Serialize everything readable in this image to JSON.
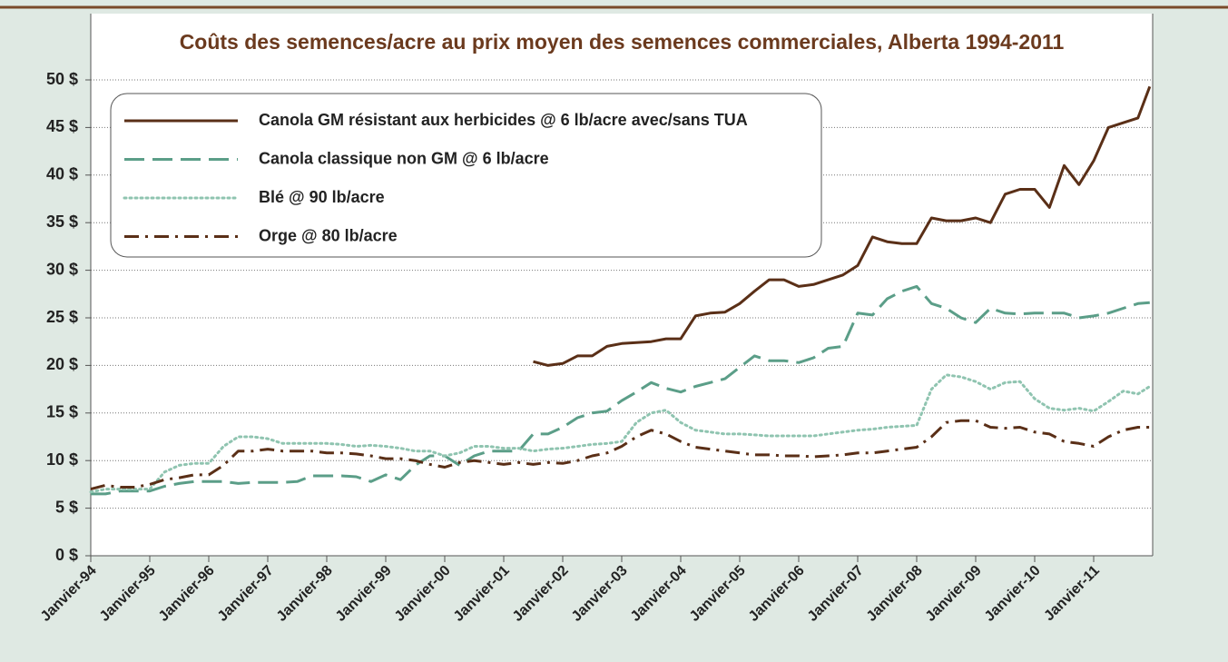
{
  "chart_data": {
    "type": "line",
    "title": "Coûts des semences/acre au prix moyen des semences commerciales, Alberta 1994-2011",
    "x": [
      1994,
      1994.25,
      1994.5,
      1994.75,
      1995,
      1995.25,
      1995.5,
      1995.75,
      1996,
      1996.25,
      1996.5,
      1996.75,
      1997,
      1997.25,
      1997.5,
      1997.75,
      1998,
      1998.25,
      1998.5,
      1998.75,
      1999,
      1999.25,
      1999.5,
      1999.75,
      2000,
      2000.25,
      2000.5,
      2000.75,
      2001,
      2001.25,
      2001.5,
      2001.75,
      2002,
      2002.25,
      2002.5,
      2002.75,
      2003,
      2003.25,
      2003.5,
      2003.75,
      2004,
      2004.25,
      2004.5,
      2004.75,
      2005,
      2005.25,
      2005.5,
      2005.75,
      2006,
      2006.25,
      2006.5,
      2006.75,
      2007,
      2007.25,
      2007.5,
      2007.75,
      2008,
      2008.25,
      2008.5,
      2008.75,
      2009,
      2009.25,
      2009.5,
      2009.75,
      2010,
      2010.25,
      2010.5,
      2010.75,
      2011,
      2011.25,
      2011.5,
      2011.75,
      2011.95
    ],
    "series": [
      {
        "name": "Canola GM résistant aux herbicides @ 6 lb/acre avec/sans TUA",
        "color": "#5a2f17",
        "dash": "solid",
        "values": [
          null,
          null,
          null,
          null,
          null,
          null,
          null,
          null,
          null,
          null,
          null,
          null,
          null,
          null,
          null,
          null,
          null,
          null,
          null,
          null,
          null,
          null,
          null,
          null,
          null,
          null,
          null,
          null,
          null,
          null,
          20.4,
          20.0,
          20.2,
          21.0,
          21.0,
          22.0,
          22.3,
          22.4,
          22.5,
          22.8,
          22.8,
          25.2,
          25.5,
          25.6,
          26.5,
          27.8,
          29.0,
          29.0,
          28.3,
          28.5,
          29.0,
          29.5,
          30.5,
          33.5,
          33.0,
          32.8,
          32.8,
          35.5,
          35.2,
          35.2,
          35.5,
          35.0,
          38.0,
          38.5,
          38.5,
          36.6,
          41.0,
          39.0,
          41.5,
          45.0,
          45.5,
          46.0,
          49.3
        ]
      },
      {
        "name": "Canola classique non GM @ 6 lb/acre",
        "color": "#5b9e88",
        "dash": "dashed",
        "values": [
          6.5,
          6.5,
          6.8,
          6.8,
          6.8,
          7.3,
          7.6,
          7.8,
          7.8,
          7.8,
          7.6,
          7.7,
          7.7,
          7.7,
          7.8,
          8.4,
          8.4,
          8.4,
          8.3,
          7.8,
          8.5,
          8.0,
          9.5,
          10.5,
          10.5,
          9.5,
          10.5,
          11.0,
          11.0,
          11.0,
          12.8,
          12.8,
          13.5,
          14.5,
          15.0,
          15.2,
          16.3,
          17.2,
          18.2,
          17.6,
          17.2,
          17.8,
          18.2,
          18.6,
          19.8,
          21.0,
          20.5,
          20.5,
          20.3,
          20.8,
          21.8,
          22.0,
          25.5,
          25.3,
          27.0,
          27.8,
          28.3,
          26.5,
          26.0,
          25.0,
          24.5,
          26.0,
          25.5,
          25.4,
          25.5,
          25.5,
          25.5,
          25.0,
          25.2,
          25.5,
          26.0,
          26.5,
          26.6
        ]
      },
      {
        "name": "Blé @ 90 lb/acre",
        "color": "#8fc4b0",
        "dash": "dotted",
        "values": [
          6.7,
          7.0,
          7.0,
          7.0,
          7.0,
          8.8,
          9.5,
          9.7,
          9.7,
          11.5,
          12.5,
          12.5,
          12.3,
          11.8,
          11.8,
          11.8,
          11.8,
          11.7,
          11.5,
          11.6,
          11.5,
          11.3,
          11.0,
          11.0,
          10.5,
          10.8,
          11.5,
          11.5,
          11.3,
          11.3,
          11.0,
          11.2,
          11.3,
          11.5,
          11.7,
          11.8,
          12.0,
          14.0,
          15.0,
          15.3,
          14.0,
          13.2,
          13.0,
          12.8,
          12.8,
          12.7,
          12.6,
          12.6,
          12.6,
          12.6,
          12.8,
          13.0,
          13.2,
          13.3,
          13.5,
          13.6,
          13.7,
          17.5,
          19.0,
          18.8,
          18.3,
          17.5,
          18.2,
          18.3,
          16.5,
          15.5,
          15.3,
          15.5,
          15.2,
          16.2,
          17.3,
          17.0,
          17.8
        ]
      },
      {
        "name": "Orge @ 80 lb/acre",
        "color": "#5a2f17",
        "dash": "dashdot",
        "values": [
          7.0,
          7.4,
          7.2,
          7.2,
          7.5,
          8.0,
          8.2,
          8.5,
          8.5,
          9.5,
          11.0,
          11.0,
          11.2,
          11.0,
          11.0,
          11.0,
          10.8,
          10.8,
          10.7,
          10.5,
          10.2,
          10.2,
          10.0,
          9.6,
          9.3,
          9.8,
          10.0,
          9.8,
          9.6,
          9.8,
          9.6,
          9.8,
          9.7,
          10.0,
          10.5,
          10.8,
          11.5,
          12.5,
          13.2,
          12.8,
          12.0,
          11.4,
          11.2,
          11.0,
          10.8,
          10.6,
          10.6,
          10.5,
          10.5,
          10.4,
          10.5,
          10.6,
          10.8,
          10.8,
          11.0,
          11.2,
          11.4,
          12.5,
          14.0,
          14.2,
          14.2,
          13.5,
          13.4,
          13.5,
          13.0,
          12.8,
          12.0,
          11.8,
          11.5,
          12.5,
          13.2,
          13.5,
          13.5
        ]
      }
    ],
    "xlim": [
      1994,
      2012
    ],
    "xticks": [
      {
        "value": 1994,
        "label": "Janvier-94"
      },
      {
        "value": 1995,
        "label": "Janvier-95"
      },
      {
        "value": 1996,
        "label": "Janvier-96"
      },
      {
        "value": 1997,
        "label": "Janvier-97"
      },
      {
        "value": 1998,
        "label": "Janvier-98"
      },
      {
        "value": 1999,
        "label": "Janvier-99"
      },
      {
        "value": 2000,
        "label": "Janvier-00"
      },
      {
        "value": 2001,
        "label": "Janvier-01"
      },
      {
        "value": 2002,
        "label": "Janvier-02"
      },
      {
        "value": 2003,
        "label": "Janvier-03"
      },
      {
        "value": 2004,
        "label": "Janvier-04"
      },
      {
        "value": 2005,
        "label": "Janvier-05"
      },
      {
        "value": 2006,
        "label": "Janvier-06"
      },
      {
        "value": 2007,
        "label": "Janvier-07"
      },
      {
        "value": 2008,
        "label": "Janvier-08"
      },
      {
        "value": 2009,
        "label": "Janvier-09"
      },
      {
        "value": 2010,
        "label": "Janvier-10"
      },
      {
        "value": 2011,
        "label": "Janvier-11"
      }
    ],
    "ylim": [
      0,
      50
    ],
    "yticks": [
      {
        "value": 0,
        "label": "0 $"
      },
      {
        "value": 5,
        "label": "5 $"
      },
      {
        "value": 10,
        "label": "10 $"
      },
      {
        "value": 15,
        "label": "15 $"
      },
      {
        "value": 20,
        "label": "20 $"
      },
      {
        "value": 25,
        "label": "25 $"
      },
      {
        "value": 30,
        "label": "30 $"
      },
      {
        "value": 35,
        "label": "35 $"
      },
      {
        "value": 40,
        "label": "40 $"
      },
      {
        "value": 45,
        "label": "45 $"
      },
      {
        "value": 50,
        "label": "50 $"
      }
    ],
    "grid": true,
    "legend": "upper left"
  }
}
